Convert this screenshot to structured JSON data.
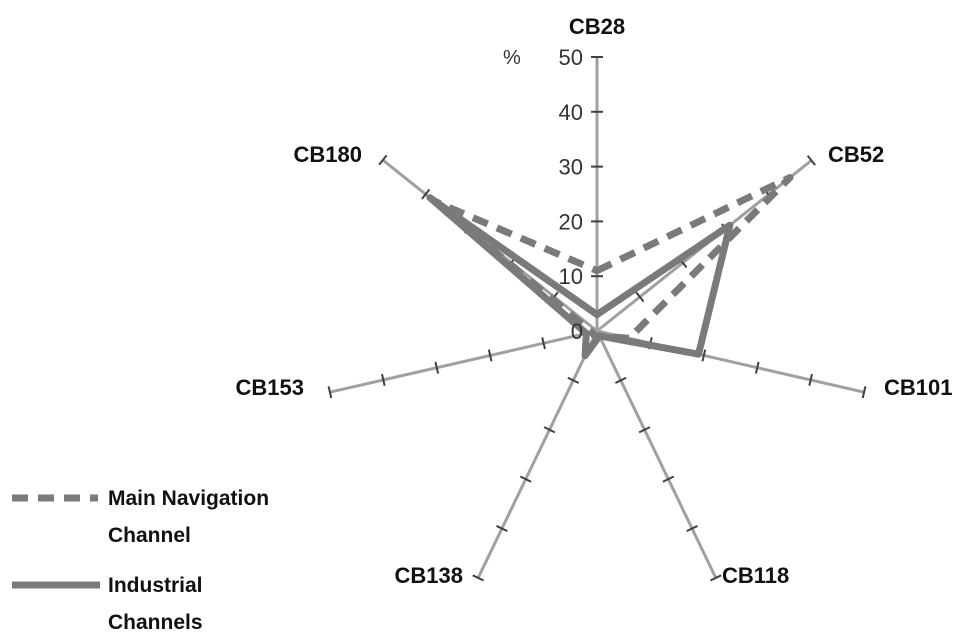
{
  "chart_data": {
    "type": "radar",
    "unit_label": "%",
    "radial_range": [
      0,
      50
    ],
    "radial_ticks": [
      "0",
      "10",
      "20",
      "30",
      "40",
      "50"
    ],
    "categories": [
      "CB28",
      "CB52",
      "CB101",
      "CB118",
      "CB138",
      "CB153",
      "CB180"
    ],
    "series": [
      {
        "name": "Main Navigation Channel",
        "line_style": "dashed",
        "color": "#7a7a7a",
        "values": [
          11,
          45,
          6,
          1,
          1,
          1,
          38
        ]
      },
      {
        "name": "Industrial Channels",
        "line_style": "solid",
        "color": "#7a7a7a",
        "values": [
          3,
          31,
          19,
          1,
          5,
          2,
          39
        ]
      }
    ],
    "legend": {
      "position": "bottom-left",
      "entries": [
        [
          "Main Navigation",
          "Channel"
        ],
        [
          "Industrial",
          "Channels"
        ]
      ]
    },
    "grid": false
  }
}
